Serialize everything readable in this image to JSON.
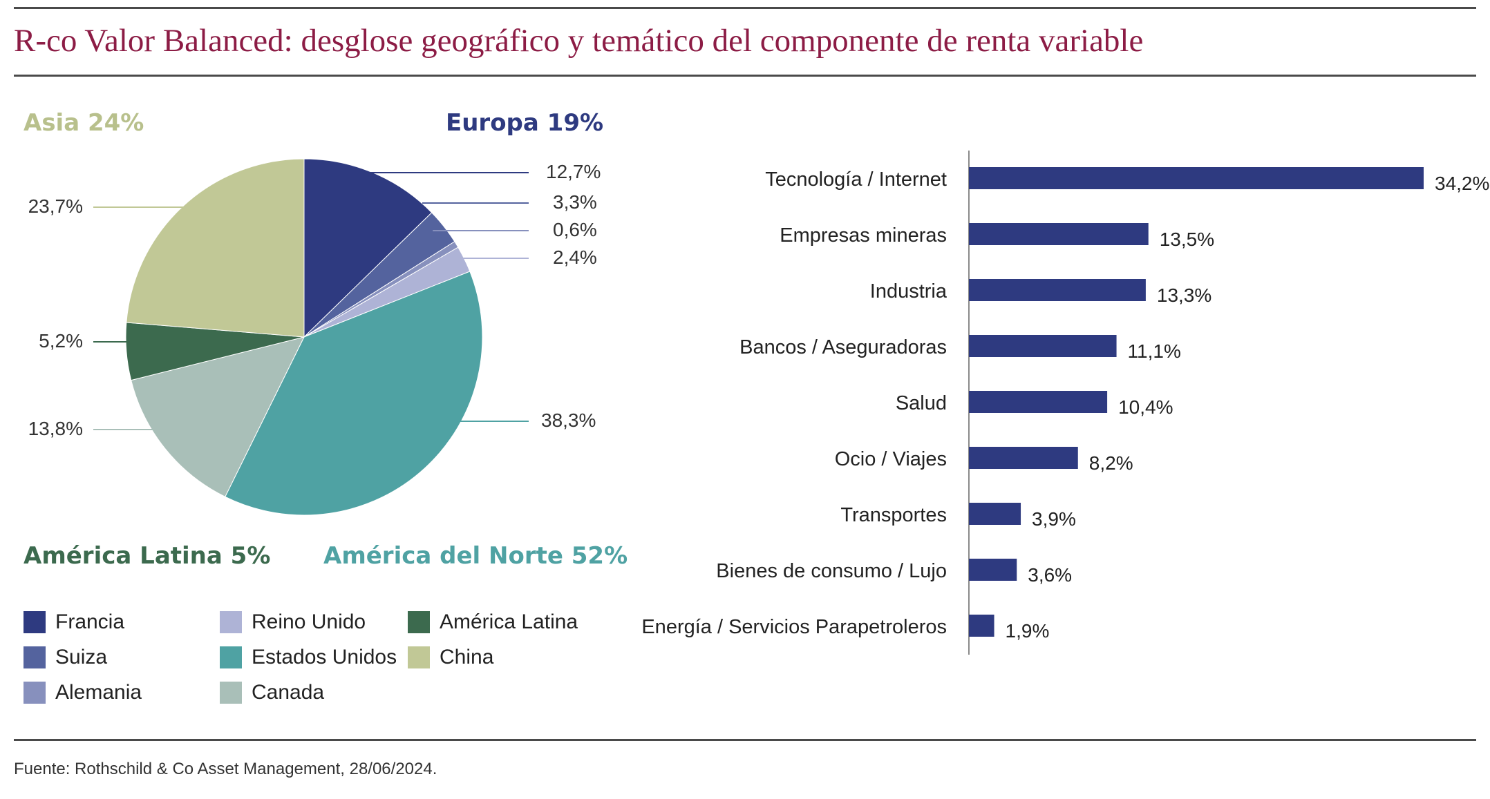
{
  "title": "R-co Valor Balanced: desglose geográfico y temático del componente de renta variable",
  "source": "Fuente: Rothschild & Co Asset Management, 28/06/2024.",
  "colors": {
    "title": "#8c1c45",
    "francia": "#2e3a80",
    "suiza": "#54639e",
    "alemania": "#8790bd",
    "reino_unido": "#aeb3d6",
    "estados_unidos": "#4fa2a3",
    "canada": "#a9bfb8",
    "america_latina": "#3c6a4e",
    "china": "#c1c896",
    "bars": "#2e3a80"
  },
  "regions": {
    "asia": "Asia 24%",
    "europa": "Europa 19%",
    "america_latina": "América Latina 5%",
    "america_norte": "América del Norte 52%"
  },
  "legend": [
    {
      "label": "Francia",
      "color": "#2e3a80"
    },
    {
      "label": "Suiza",
      "color": "#54639e"
    },
    {
      "label": "Alemania",
      "color": "#8790bd"
    },
    {
      "label": "Reino Unido",
      "color": "#aeb3d6"
    },
    {
      "label": "Estados Unidos",
      "color": "#4fa2a3"
    },
    {
      "label": "Canada",
      "color": "#a9bfb8"
    },
    {
      "label": "América Latina",
      "color": "#3c6a4e"
    },
    {
      "label": "China",
      "color": "#c1c896"
    }
  ],
  "chart_data": [
    {
      "type": "pie",
      "slices": [
        {
          "name": "Francia",
          "value": 12.7,
          "label": "12,7%",
          "color": "#2e3a80"
        },
        {
          "name": "Suiza",
          "value": 3.3,
          "label": "3,3%",
          "color": "#54639e"
        },
        {
          "name": "Alemania",
          "value": 0.6,
          "label": "0,6%",
          "color": "#8790bd"
        },
        {
          "name": "Reino Unido",
          "value": 2.4,
          "label": "2,4%",
          "color": "#aeb3d6"
        },
        {
          "name": "Estados Unidos",
          "value": 38.3,
          "label": "38,3%",
          "color": "#4fa2a3"
        },
        {
          "name": "Canada",
          "value": 13.8,
          "label": "13,8%",
          "color": "#a9bfb8"
        },
        {
          "name": "América Latina",
          "value": 5.2,
          "label": "5,2%",
          "color": "#3c6a4e"
        },
        {
          "name": "China",
          "value": 23.7,
          "label": "23,7%",
          "color": "#c1c896"
        }
      ]
    },
    {
      "type": "bar",
      "orientation": "horizontal",
      "categories": [
        "Tecnología / Internet",
        "Empresas mineras",
        "Industria",
        "Bancos / Aseguradoras",
        "Salud",
        "Ocio / Viajes",
        "Transportes",
        "Bienes de consumo / Lujo",
        "Energía / Servicios Parapetroleros"
      ],
      "values": [
        34.2,
        13.5,
        13.3,
        11.1,
        10.4,
        8.2,
        3.9,
        3.6,
        1.9
      ],
      "value_labels": [
        "34,2%",
        "13,5%",
        "13,3%",
        "11,1%",
        "10,4%",
        "8,2%",
        "3,9%",
        "3,6%",
        "1,9%"
      ],
      "xlim": [
        0,
        34.2
      ]
    }
  ]
}
